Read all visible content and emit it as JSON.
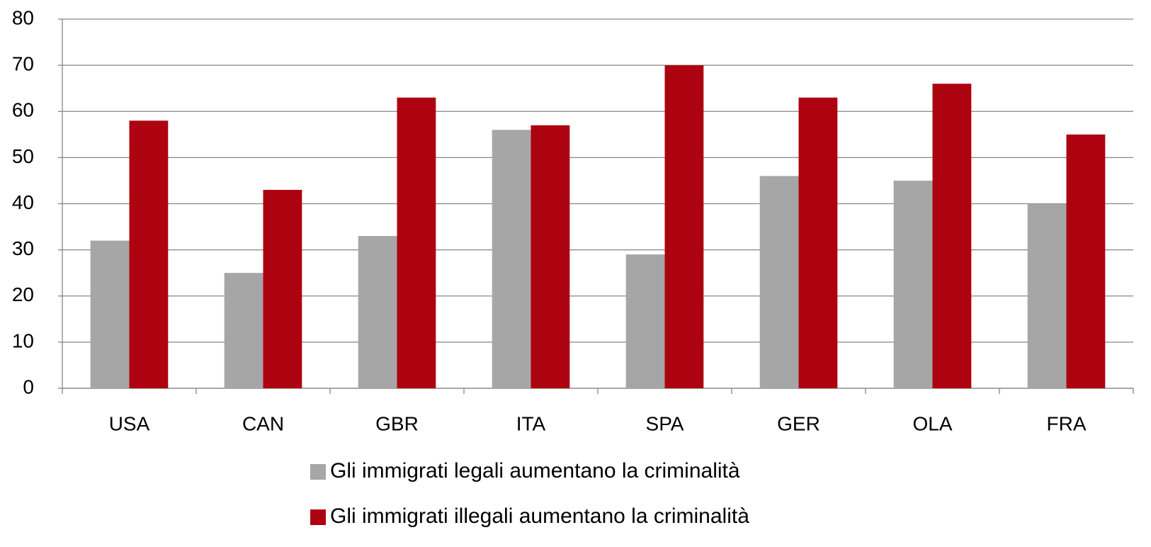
{
  "chart_data": {
    "type": "bar",
    "categories": [
      "USA",
      "CAN",
      "GBR",
      "ITA",
      "SPA",
      "GER",
      "OLA",
      "FRA"
    ],
    "series": [
      {
        "name": "Gli immigrati legali aumentano la criminalità",
        "color": "#a6a6a6",
        "values": [
          32,
          25,
          33,
          56,
          29,
          46,
          45,
          40
        ]
      },
      {
        "name": "Gli immigrati illegali aumentano la criminalità",
        "color": "#ad0310",
        "values": [
          58,
          43,
          63,
          57,
          70,
          63,
          66,
          55
        ]
      }
    ],
    "ylim": [
      0,
      80
    ],
    "yticks": [
      0,
      10,
      20,
      30,
      40,
      50,
      60,
      70,
      80
    ],
    "grid": true,
    "legend": "bottom"
  }
}
